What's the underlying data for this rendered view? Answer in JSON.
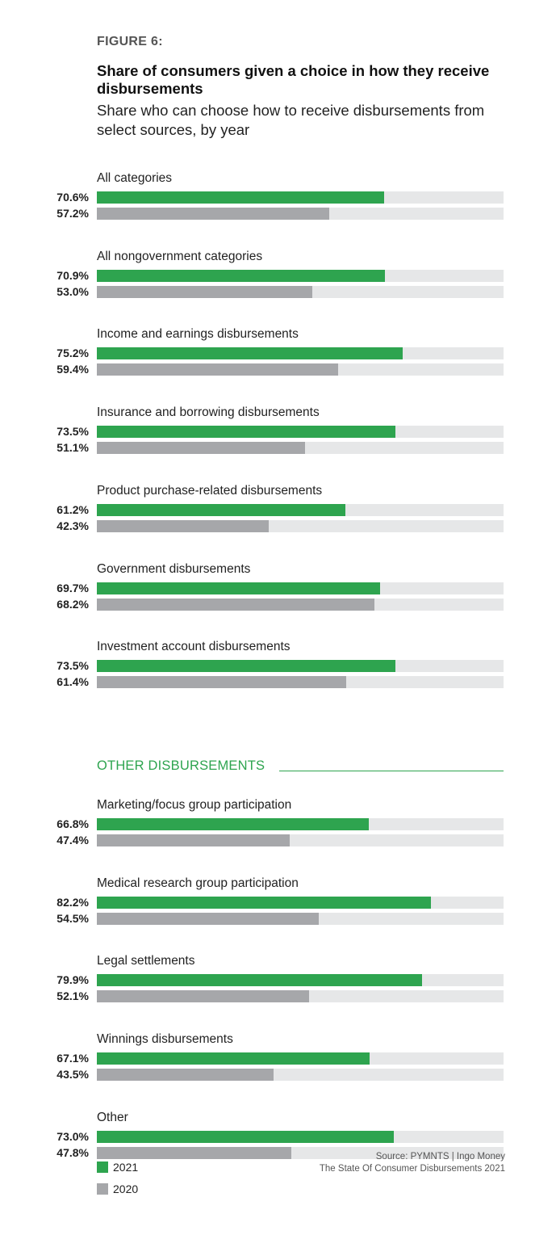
{
  "figure_label": "FIGURE 6:",
  "colors": {
    "y2021": "#2ea44f",
    "y2020": "#a6a7aa",
    "track": "#e6e7e8",
    "accent": "#2ea44f"
  },
  "source": {
    "line1": "Source: PYMNTS  |  Ingo Money",
    "line2": "The State Of Consumer Disbursements 2021"
  },
  "chart_data": {
    "type": "bar",
    "orientation": "horizontal",
    "title": "Share of consumers given a choice in how they receive disbursements",
    "subtitle": "Share who can choose how to receive disbursements from select sources, by year",
    "xlim": [
      0,
      100
    ],
    "legend": [
      {
        "name": "2021"
      },
      {
        "name": "2020"
      }
    ],
    "sections": [
      {
        "title": "",
        "categories": [
          {
            "label": "All categories",
            "v2021": 70.6,
            "v2020": 57.2,
            "t2021": "70.6%",
            "t2020": "57.2%"
          },
          {
            "label": "All nongovernment categories",
            "v2021": 70.9,
            "v2020": 53.0,
            "t2021": "70.9%",
            "t2020": "53.0%"
          },
          {
            "label": "Income and earnings disbursements",
            "v2021": 75.2,
            "v2020": 59.4,
            "t2021": "75.2%",
            "t2020": "59.4%"
          },
          {
            "label": "Insurance and borrowing disbursements",
            "v2021": 73.5,
            "v2020": 51.1,
            "t2021": "73.5%",
            "t2020": "51.1%"
          },
          {
            "label": "Product purchase-related disbursements",
            "v2021": 61.2,
            "v2020": 42.3,
            "t2021": "61.2%",
            "t2020": "42.3%"
          },
          {
            "label": "Government disbursements",
            "v2021": 69.7,
            "v2020": 68.2,
            "t2021": "69.7%",
            "t2020": "68.2%"
          },
          {
            "label": "Investment account disbursements",
            "v2021": 73.5,
            "v2020": 61.4,
            "t2021": "73.5%",
            "t2020": "61.4%"
          }
        ]
      },
      {
        "title": "OTHER DISBURSEMENTS",
        "categories": [
          {
            "label": "Marketing/focus group participation",
            "v2021": 66.8,
            "v2020": 47.4,
            "t2021": "66.8%",
            "t2020": "47.4%"
          },
          {
            "label": "Medical research group participation",
            "v2021": 82.2,
            "v2020": 54.5,
            "t2021": "82.2%",
            "t2020": "54.5%"
          },
          {
            "label": "Legal settlements",
            "v2021": 79.9,
            "v2020": 52.1,
            "t2021": "79.9%",
            "t2020": "52.1%"
          },
          {
            "label": "Winnings disbursements",
            "v2021": 67.1,
            "v2020": 43.5,
            "t2021": "67.1%",
            "t2020": "43.5%"
          },
          {
            "label": "Other",
            "v2021": 73.0,
            "v2020": 47.8,
            "t2021": "73.0%",
            "t2020": "47.8%"
          }
        ]
      }
    ]
  }
}
